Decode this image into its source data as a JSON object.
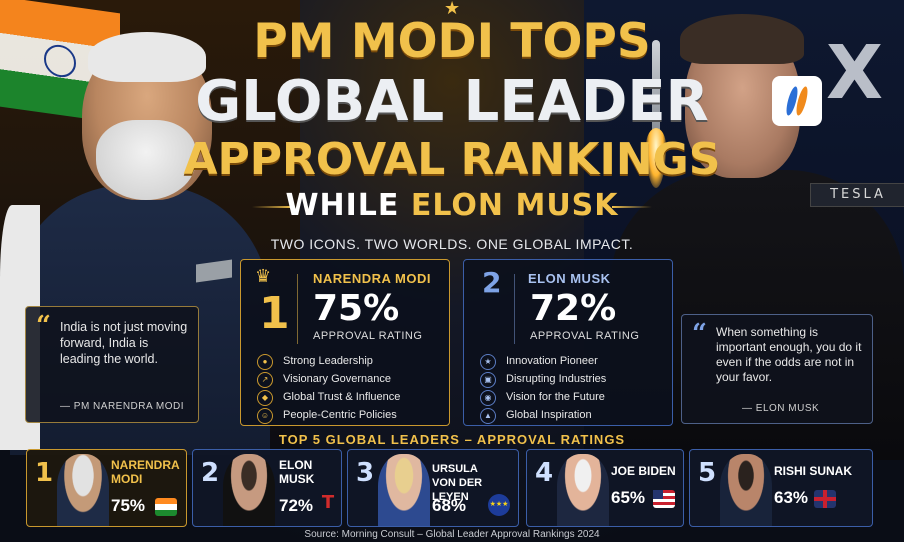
{
  "headline": {
    "line1": "PM MODI TOPS",
    "line2": "GLOBAL LEADER",
    "line3": "APPROVAL RANKINGS",
    "line4_prefix": "WHILE",
    "line4_highlight": "ELON MUSK"
  },
  "tagline": "TWO ICONS. TWO WORLDS. ONE GLOBAL IMPACT.",
  "tesla_sign": "TESLA",
  "x_logo": "X",
  "quote_left": {
    "mark": "“",
    "text": "India is not just moving forward, India is leading the world.",
    "author": "— PM NARENDRA MODI"
  },
  "quote_right": {
    "mark": "“",
    "text": "When something is important enough, you do it even if the odds are not in your favor.",
    "author": "— ELON MUSK"
  },
  "card_modi": {
    "rank": "1",
    "name": "NARENDRA MODI",
    "percent": "75%",
    "label": "APPROVAL RATING",
    "traits": [
      "Strong Leadership",
      "Visionary Governance",
      "Global Trust & Influence",
      "People-Centric Policies"
    ]
  },
  "card_musk": {
    "rank": "2",
    "name": "ELON MUSK",
    "percent": "72%",
    "label": "APPROVAL RATING",
    "traits": [
      "Innovation Pioneer",
      "Disrupting Industries",
      "Vision for the Future",
      "Global Inspiration"
    ]
  },
  "top5": {
    "title": "TOP 5 GLOBAL LEADERS – APPROVAL RATINGS",
    "items": [
      {
        "rank": "1",
        "name_line1": "NARENDRA",
        "name_line2": "MODI",
        "percent": "75%",
        "approval": 75
      },
      {
        "rank": "2",
        "name_line1": "ELON",
        "name_line2": "MUSK",
        "percent": "72%",
        "approval": 72
      },
      {
        "rank": "3",
        "name_line1": "URSULA",
        "name_line2": "VON DER LEYEN",
        "percent": "68%",
        "approval": 68
      },
      {
        "rank": "4",
        "name_line1": "JOE BIDEN",
        "name_line2": "",
        "percent": "65%",
        "approval": 65
      },
      {
        "rank": "5",
        "name_line1": "RISHI SUNAK",
        "name_line2": "",
        "percent": "63%",
        "approval": 63
      }
    ]
  },
  "source": "Source: Morning Consult – Global Leader Approval Rankings 2024",
  "colors": {
    "gold": "#f1c14b",
    "blue": "#3b5ea8",
    "background": "#0b0f1a"
  }
}
